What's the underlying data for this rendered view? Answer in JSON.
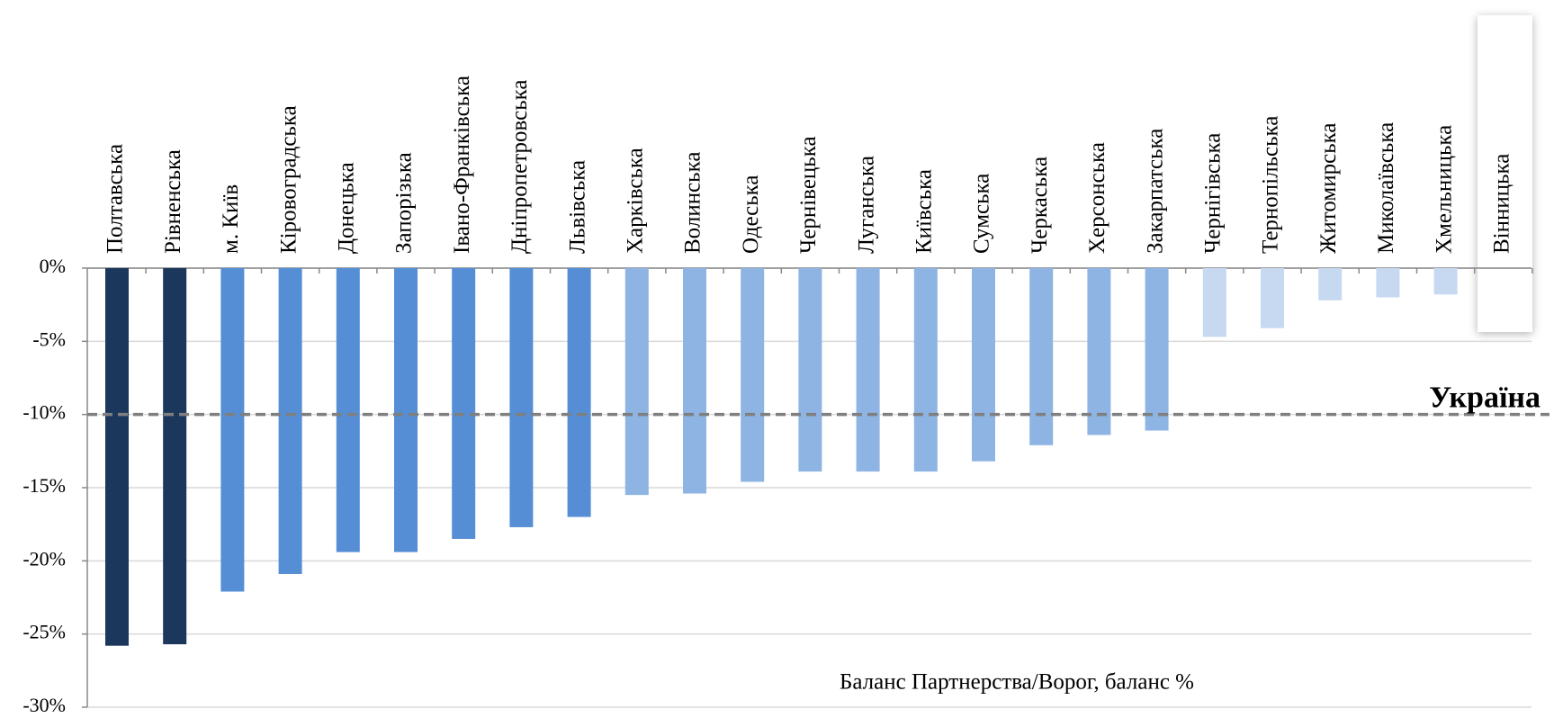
{
  "chart_data": {
    "type": "bar",
    "categories": [
      "Полтавська",
      "Рівненська",
      "м. Київ",
      "Кіровоградська",
      "Донецька",
      "Запорізька",
      "Івано-Франківська",
      "Дніпропетровська",
      "Львівська",
      "Харківська",
      "Волинська",
      "Одеська",
      "Чернівецька",
      "Луганська",
      "Київська",
      "Сумська",
      "Черкаська",
      "Херсонська",
      "Закарпатська",
      "Чернігівська",
      "Тернопільська",
      "Житомирська",
      "Миколаївська",
      "Хмельницька",
      "Вінницька"
    ],
    "values": [
      -25.8,
      -25.7,
      -22.1,
      -20.9,
      -19.4,
      -19.4,
      -18.5,
      -17.7,
      -17.0,
      -15.5,
      -15.4,
      -14.6,
      -13.9,
      -13.9,
      -13.9,
      -13.2,
      -12.1,
      -11.4,
      -11.1,
      -4.7,
      -4.1,
      -2.2,
      -2.0,
      -1.8,
      0
    ],
    "colors": [
      "#1b375c",
      "#1b375c",
      "#558ed5",
      "#558ed5",
      "#558ed5",
      "#558ed5",
      "#558ed5",
      "#558ed5",
      "#558ed5",
      "#8eb4e3",
      "#8eb4e3",
      "#8eb4e3",
      "#8eb4e3",
      "#8eb4e3",
      "#8eb4e3",
      "#8eb4e3",
      "#8eb4e3",
      "#8eb4e3",
      "#8eb4e3",
      "#c6d9f1",
      "#c6d9f1",
      "#c6d9f1",
      "#c6d9f1",
      "#c6d9f1",
      "#c6d9f1"
    ],
    "ylim": [
      -30,
      0
    ],
    "yticks": [
      {
        "value": 0,
        "label": "0%"
      },
      {
        "value": -5,
        "label": "-5%"
      },
      {
        "value": -10,
        "label": "-10%"
      },
      {
        "value": -15,
        "label": "-15%"
      },
      {
        "value": -20,
        "label": "-20%"
      },
      {
        "value": -25,
        "label": "-25%"
      },
      {
        "value": -30,
        "label": "-30%"
      }
    ],
    "grid": true,
    "x_label": "Баланс Партнерства/Ворог, баланс %",
    "reference_line": {
      "value": -10,
      "label": "Україна",
      "color": "#2e4f84"
    }
  }
}
